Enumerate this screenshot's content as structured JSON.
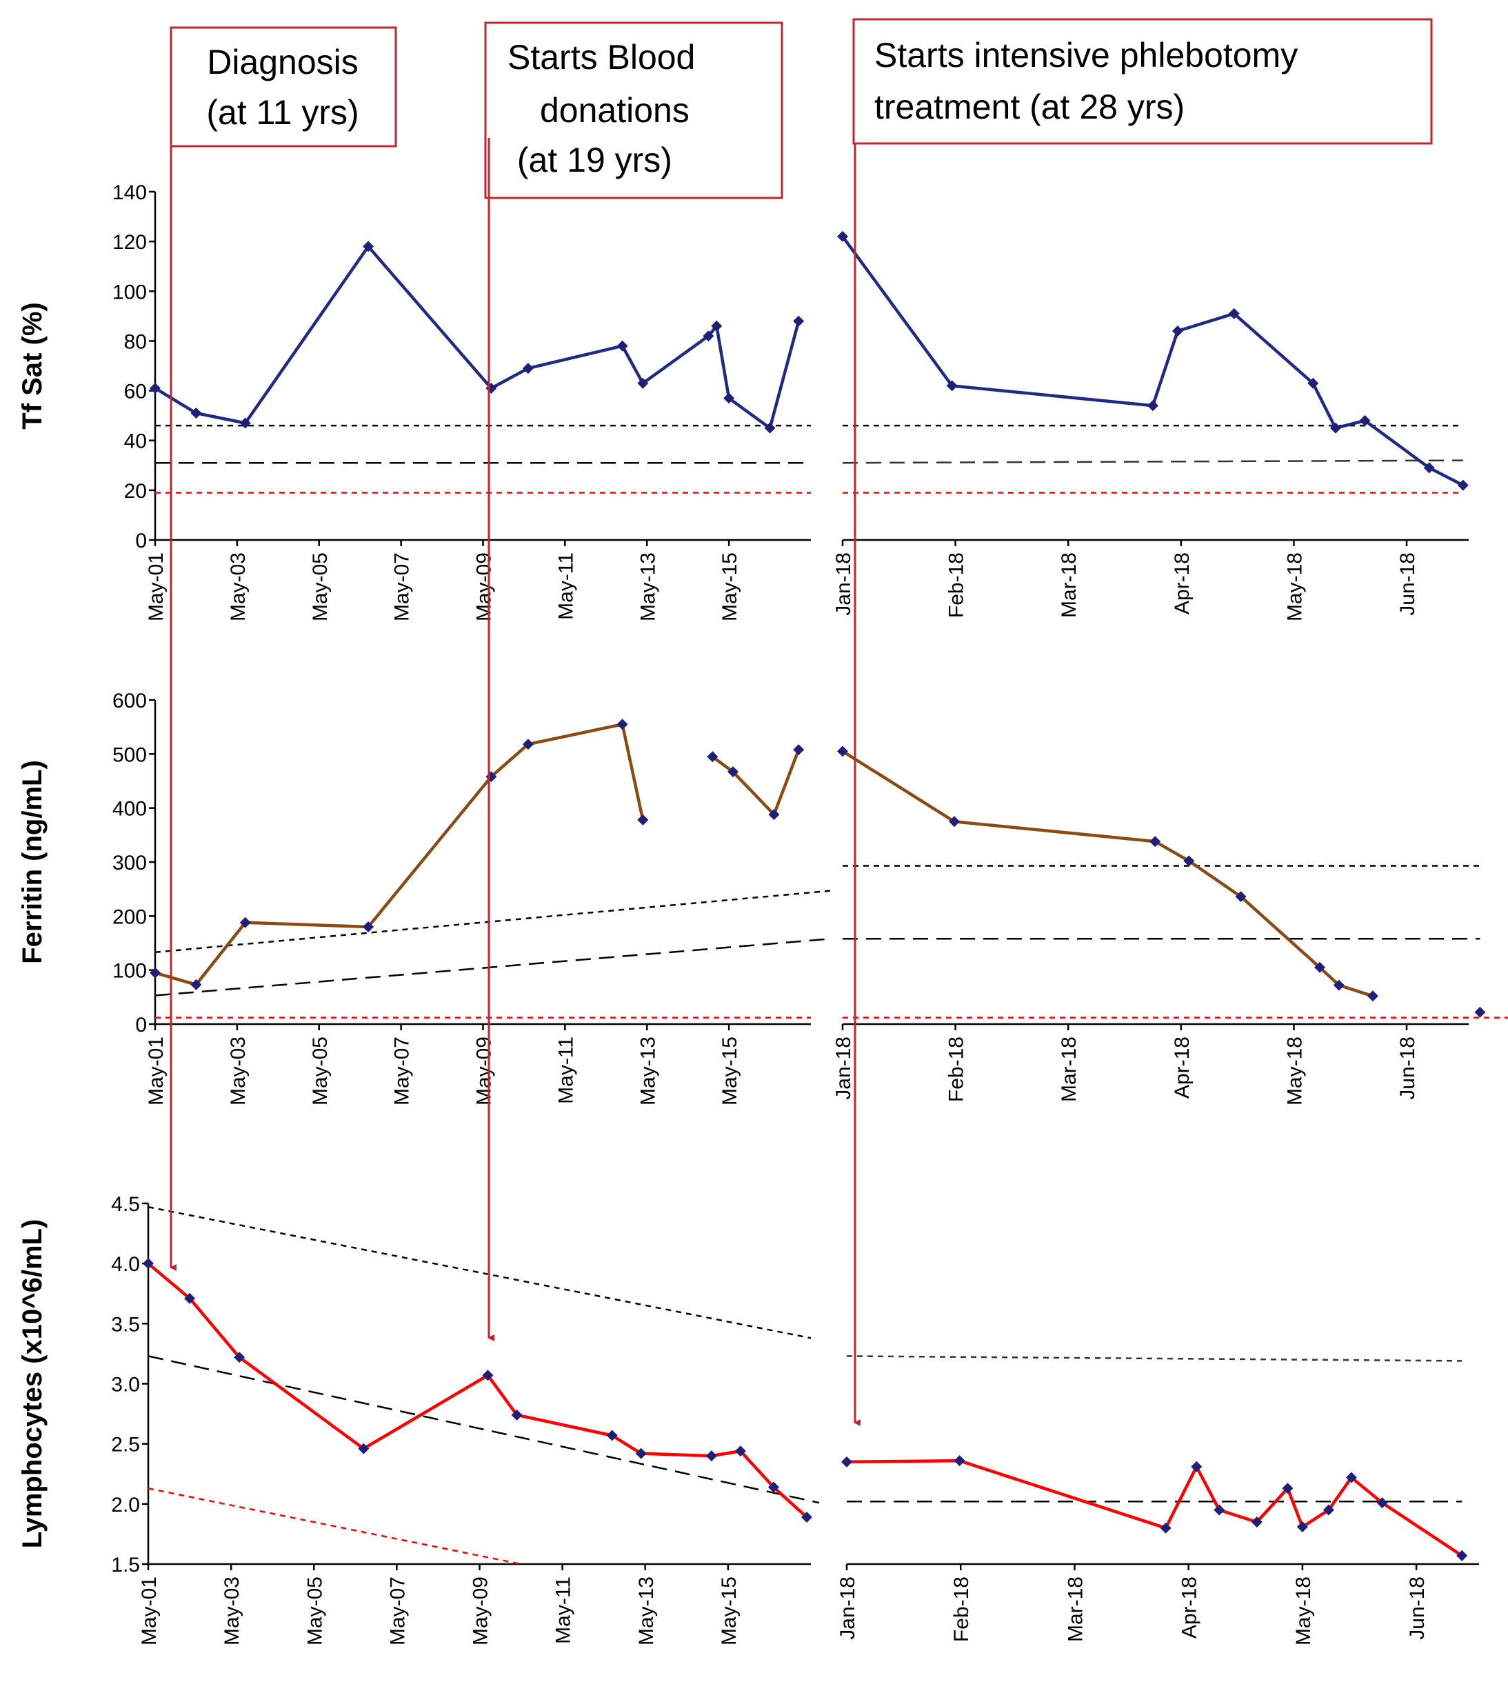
{
  "colors": {
    "tfsat": "#1f2a85",
    "ferritin": "#8b4a14",
    "lymph": "#ff0000",
    "marker": "#1f1f7a",
    "annot": "#c0262d"
  },
  "annotations": [
    {
      "lines": [
        "Diagnosis",
        "(at 11 yrs)"
      ]
    },
    {
      "lines": [
        "Starts Blood",
        "donations",
        " (at 19 yrs)"
      ]
    },
    {
      "lines": [
        "Starts intensive phlebotomy",
        "treatment (at 28 yrs)"
      ]
    }
  ],
  "chart_data": [
    {
      "id": "tfsat-years",
      "type": "line",
      "ylabel": "Tf Sat (%)",
      "ylim": [
        0,
        140
      ],
      "yticks": [
        "0",
        "20",
        "40",
        "60",
        "80",
        "100",
        "120",
        "140"
      ],
      "xlim": [
        2001.4,
        2017.4
      ],
      "xticks": [
        2001.4,
        2003.4,
        2005.4,
        2007.4,
        2009.4,
        2011.4,
        2013.4,
        2015.4
      ],
      "xticklabels": [
        "May-01",
        "May-03",
        "May-05",
        "May-07",
        "May-09",
        "May-11",
        "May-13",
        "May-15"
      ],
      "series": [
        {
          "name": "Tf Sat",
          "color_key": "tfsat",
          "segments": [
            [
              [
                2001.4,
                61
              ],
              [
                2002.4,
                51
              ],
              [
                2003.6,
                47
              ],
              [
                2006.6,
                118
              ],
              [
                2009.6,
                61
              ],
              [
                2010.5,
                69
              ],
              [
                2012.8,
                78
              ],
              [
                2013.3,
                63
              ],
              [
                2014.9,
                82
              ],
              [
                2015.1,
                86
              ],
              [
                2015.4,
                57
              ],
              [
                2016.4,
                45
              ],
              [
                2017.1,
                88
              ]
            ]
          ]
        }
      ],
      "reference_lines": [
        {
          "style": "short-dash",
          "color": "#000000",
          "points": [
            [
              2001.4,
              46
            ],
            [
              2017.4,
              46
            ]
          ]
        },
        {
          "style": "long-dash",
          "color": "#000000",
          "points": [
            [
              2001.4,
              31
            ],
            [
              2017.4,
              31
            ]
          ]
        },
        {
          "style": "short-dash",
          "color": "#ff0000",
          "points": [
            [
              2001.4,
              19
            ],
            [
              2017.4,
              19
            ]
          ]
        }
      ]
    },
    {
      "id": "tfsat-2018",
      "type": "line",
      "ylabel": "",
      "ylim": [
        0,
        140
      ],
      "xlim": [
        0,
        5.55
      ],
      "xticks": [
        0,
        1,
        2,
        3,
        4,
        5
      ],
      "xticklabels": [
        "Jan-18",
        "Feb-18",
        "Mar-18",
        "Apr-18",
        "May-18",
        "Jun-18"
      ],
      "series": [
        {
          "name": "Tf Sat",
          "color_key": "tfsat",
          "segments": [
            [
              [
                0,
                122
              ],
              [
                0.97,
                62
              ],
              [
                2.75,
                54
              ],
              [
                2.97,
                84
              ],
              [
                3.47,
                91
              ],
              [
                4.17,
                63
              ],
              [
                4.37,
                45
              ],
              [
                4.63,
                48
              ],
              [
                5.2,
                29
              ],
              [
                5.5,
                22
              ]
            ]
          ]
        }
      ],
      "reference_lines": [
        {
          "style": "short-dash",
          "color": "#000000",
          "points": [
            [
              0,
              46
            ],
            [
              5.5,
              46
            ]
          ]
        },
        {
          "style": "long-dash",
          "color": "#333333",
          "points": [
            [
              0,
              31
            ],
            [
              5.5,
              32
            ]
          ]
        },
        {
          "style": "short-dash",
          "color": "#ff0000",
          "points": [
            [
              0,
              19
            ],
            [
              5.5,
              19
            ]
          ]
        }
      ]
    },
    {
      "id": "ferritin-years",
      "type": "line",
      "ylabel": "Ferritin (ng/mL)",
      "ylim": [
        0,
        600
      ],
      "yticks": [
        "0",
        "100",
        "200",
        "300",
        "400",
        "500",
        "600"
      ],
      "xlim": [
        2001.4,
        2017.4
      ],
      "xticks": [
        2001.4,
        2003.4,
        2005.4,
        2007.4,
        2009.4,
        2011.4,
        2013.4,
        2015.4
      ],
      "xticklabels": [
        "May-01",
        "May-03",
        "May-05",
        "May-07",
        "May-09",
        "May-11",
        "May-13",
        "May-15"
      ],
      "series": [
        {
          "name": "Ferritin",
          "color_key": "ferritin",
          "segments": [
            [
              [
                2001.4,
                95
              ],
              [
                2002.4,
                73
              ],
              [
                2003.6,
                188
              ],
              [
                2006.6,
                180
              ],
              [
                2009.6,
                458
              ],
              [
                2010.5,
                518
              ],
              [
                2012.8,
                555
              ],
              [
                2013.3,
                378
              ]
            ],
            [
              [
                2015.0,
                495
              ],
              [
                2015.5,
                467
              ],
              [
                2016.5,
                388
              ],
              [
                2017.1,
                508
              ]
            ]
          ]
        }
      ],
      "reference_lines": [
        {
          "style": "short-dash",
          "color": "#000000",
          "points": [
            [
              2001.4,
              133
            ],
            [
              2017.9,
              247
            ]
          ]
        },
        {
          "style": "long-dash",
          "color": "#000000",
          "points": [
            [
              2001.4,
              53
            ],
            [
              2017.9,
              158
            ]
          ]
        },
        {
          "style": "short-dash",
          "color": "#ff0000",
          "points": [
            [
              2001.4,
              12
            ],
            [
              2017.4,
              12
            ]
          ]
        }
      ]
    },
    {
      "id": "ferritin-2018",
      "type": "line",
      "ylabel": "",
      "ylim": [
        0,
        600
      ],
      "xlim": [
        0,
        5.55
      ],
      "xticks": [
        0,
        1,
        2,
        3,
        4,
        5
      ],
      "xticklabels": [
        "Jan-18",
        "Feb-18",
        "Mar-18",
        "Apr-18",
        "May-18",
        "Jun-18"
      ],
      "series": [
        {
          "name": "Ferritin",
          "color_key": "ferritin",
          "segments": [
            [
              [
                0,
                505
              ],
              [
                0.99,
                375
              ],
              [
                2.77,
                338
              ],
              [
                3.07,
                302
              ],
              [
                3.53,
                236
              ],
              [
                4.23,
                105
              ],
              [
                4.4,
                72
              ],
              [
                4.7,
                52
              ]
            ],
            [
              [
                5.65,
                22
              ]
            ]
          ]
        }
      ],
      "reference_lines": [
        {
          "style": "short-dash",
          "color": "#000000",
          "points": [
            [
              0,
              293
            ],
            [
              5.65,
              293
            ]
          ]
        },
        {
          "style": "long-dash",
          "color": "#000000",
          "points": [
            [
              0,
              158
            ],
            [
              5.65,
              158
            ]
          ]
        },
        {
          "style": "short-dash",
          "color": "#ff0000",
          "points": [
            [
              0,
              12
            ],
            [
              5.95,
              12
            ]
          ]
        }
      ]
    },
    {
      "id": "lymph-years",
      "type": "line",
      "ylabel": "Lymphocytes  (x10^6/mL)",
      "ylim": [
        1.5,
        4.5
      ],
      "yticks": [
        "1.5",
        "2.0",
        "2.5",
        "3.0",
        "3.5",
        "4.0",
        "4.5"
      ],
      "xlim": [
        2001.4,
        2017.4
      ],
      "xticks": [
        2001.4,
        2003.4,
        2005.4,
        2007.4,
        2009.4,
        2011.4,
        2013.4,
        2015.4
      ],
      "xticklabels": [
        "May-01",
        "May-03",
        "May-05",
        "May-07",
        "May-09",
        "May-11",
        "May-13",
        "May-15"
      ],
      "series": [
        {
          "name": "Lymphocytes",
          "color_key": "lymph",
          "segments": [
            [
              [
                2001.4,
                4.0
              ],
              [
                2002.4,
                3.71
              ],
              [
                2003.6,
                3.22
              ],
              [
                2006.6,
                2.46
              ],
              [
                2009.6,
                3.07
              ],
              [
                2010.3,
                2.74
              ],
              [
                2012.6,
                2.57
              ],
              [
                2013.3,
                2.42
              ],
              [
                2015.0,
                2.4
              ],
              [
                2015.7,
                2.44
              ],
              [
                2016.5,
                2.14
              ],
              [
                2017.3,
                1.89
              ]
            ]
          ]
        }
      ],
      "reference_lines": [
        {
          "style": "short-dash",
          "color": "#000000",
          "points": [
            [
              2001.4,
              4.47
            ],
            [
              2017.4,
              3.38
            ]
          ]
        },
        {
          "style": "long-dash",
          "color": "#000000",
          "points": [
            [
              2001.4,
              3.23
            ],
            [
              2017.6,
              2.01
            ]
          ]
        },
        {
          "style": "short-dash",
          "color": "#ff0000",
          "points": [
            [
              2001.4,
              2.13
            ],
            [
              2010.4,
              1.5
            ]
          ]
        }
      ]
    },
    {
      "id": "lymph-2018",
      "type": "line",
      "ylabel": "",
      "ylim": [
        1.5,
        4.5
      ],
      "xlim": [
        0,
        5.55
      ],
      "xticks": [
        0,
        1,
        2,
        3,
        4,
        5
      ],
      "xticklabels": [
        "Jan-18",
        "Feb-18",
        "Mar-18",
        "Apr-18",
        "May-18",
        "Jun-18"
      ],
      "series": [
        {
          "name": "Lymphocytes",
          "color_key": "lymph",
          "segments": [
            [
              [
                0,
                2.35
              ],
              [
                0.99,
                2.36
              ],
              [
                2.8,
                1.8
              ],
              [
                3.07,
                2.31
              ],
              [
                3.27,
                1.95
              ],
              [
                3.6,
                1.85
              ],
              [
                3.87,
                2.13
              ],
              [
                4.0,
                1.81
              ],
              [
                4.23,
                1.95
              ],
              [
                4.43,
                2.22
              ],
              [
                4.7,
                2.01
              ],
              [
                5.4,
                1.57
              ]
            ]
          ]
        }
      ],
      "reference_lines": [
        {
          "style": "short-dash",
          "color": "#333333",
          "points": [
            [
              0,
              3.23
            ],
            [
              5.4,
              3.19
            ]
          ]
        },
        {
          "style": "long-dash",
          "color": "#000000",
          "points": [
            [
              0,
              2.02
            ],
            [
              5.4,
              2.02
            ]
          ]
        }
      ]
    }
  ]
}
